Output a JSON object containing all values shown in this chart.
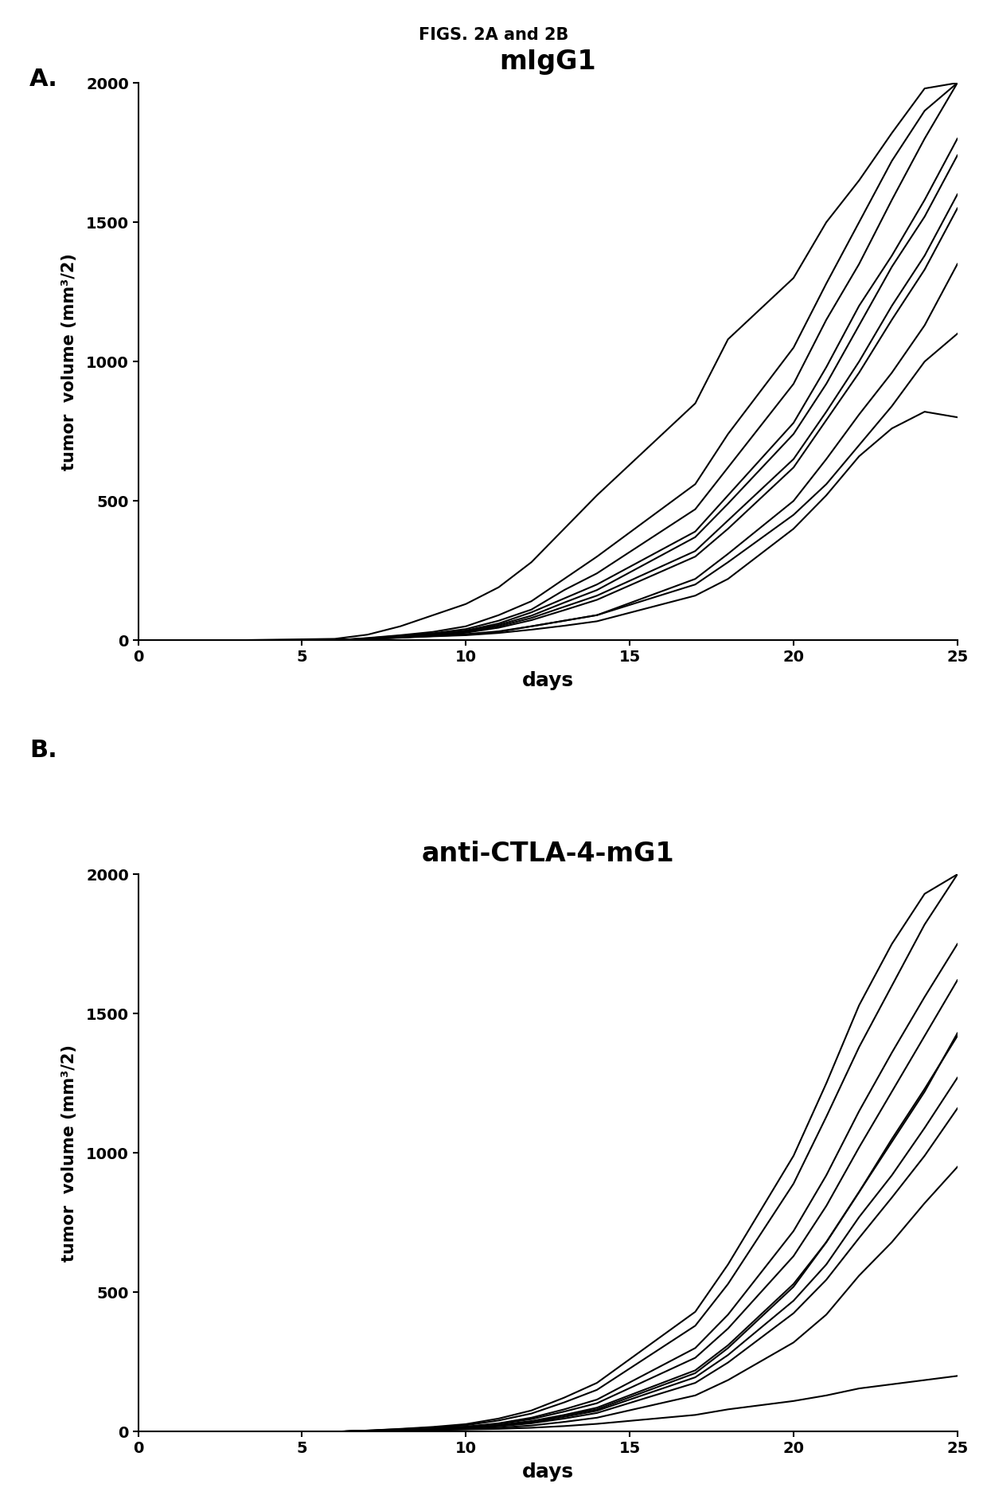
{
  "fig_title": "FIGS. 2A and 2B",
  "panel_A_title": "mIgG1",
  "panel_B_title": "anti-CTLA-4-mG1",
  "xlabel": "days",
  "ylabel": "tumor  volume (mm³/2)",
  "xlim": [
    0,
    25
  ],
  "ylim": [
    0,
    2000
  ],
  "xticks": [
    0,
    5,
    10,
    15,
    20,
    25
  ],
  "yticks": [
    0,
    500,
    1000,
    1500,
    2000
  ],
  "line_color": "#000000",
  "panel_A_x": [
    0,
    3,
    6,
    7,
    8,
    9,
    10,
    11,
    12,
    13,
    14,
    17,
    18,
    20,
    21,
    22,
    23,
    24,
    25
  ],
  "panel_A_data": [
    [
      0,
      0,
      0,
      5,
      10,
      15,
      20,
      30,
      50,
      70,
      90,
      200,
      280,
      450,
      560,
      700,
      840,
      1000,
      1100
    ],
    [
      0,
      0,
      0,
      5,
      12,
      20,
      30,
      50,
      80,
      120,
      160,
      320,
      430,
      650,
      820,
      1000,
      1200,
      1380,
      1600
    ],
    [
      0,
      0,
      0,
      6,
      14,
      22,
      35,
      60,
      100,
      150,
      200,
      390,
      520,
      780,
      980,
      1200,
      1380,
      1580,
      1800
    ],
    [
      0,
      0,
      0,
      7,
      16,
      25,
      40,
      70,
      110,
      180,
      240,
      470,
      620,
      920,
      1150,
      1350,
      1580,
      1800,
      2000
    ],
    [
      0,
      0,
      0,
      8,
      18,
      30,
      50,
      90,
      140,
      220,
      300,
      560,
      740,
      1050,
      1280,
      1500,
      1720,
      1900,
      2000
    ],
    [
      0,
      0,
      5,
      20,
      50,
      90,
      130,
      190,
      280,
      400,
      520,
      850,
      1080,
      1300,
      1500,
      1650,
      1820,
      1980,
      2000
    ],
    [
      0,
      0,
      0,
      5,
      10,
      16,
      22,
      32,
      50,
      70,
      90,
      220,
      310,
      500,
      650,
      810,
      960,
      1130,
      1350
    ],
    [
      0,
      0,
      0,
      6,
      13,
      21,
      32,
      55,
      88,
      135,
      180,
      370,
      490,
      740,
      920,
      1130,
      1340,
      1520,
      1740
    ],
    [
      0,
      0,
      0,
      5,
      11,
      18,
      27,
      45,
      72,
      108,
      145,
      300,
      400,
      620,
      790,
      960,
      1150,
      1330,
      1550
    ],
    [
      0,
      0,
      0,
      4,
      9,
      14,
      18,
      26,
      38,
      52,
      68,
      160,
      220,
      400,
      520,
      660,
      760,
      820,
      800
    ]
  ],
  "panel_B_x": [
    0,
    3,
    6,
    7,
    8,
    9,
    10,
    11,
    12,
    13,
    14,
    17,
    18,
    20,
    21,
    22,
    23,
    24,
    25
  ],
  "panel_B_data": [
    [
      0,
      0,
      0,
      2,
      4,
      6,
      8,
      10,
      14,
      20,
      28,
      60,
      80,
      110,
      130,
      155,
      170,
      185,
      200
    ],
    [
      0,
      0,
      0,
      2,
      4,
      6,
      9,
      14,
      22,
      35,
      50,
      130,
      185,
      320,
      420,
      560,
      680,
      820,
      950
    ],
    [
      0,
      0,
      0,
      3,
      6,
      9,
      14,
      22,
      36,
      58,
      80,
      210,
      300,
      520,
      680,
      860,
      1050,
      1230,
      1420
    ],
    [
      0,
      0,
      0,
      3,
      7,
      12,
      18,
      30,
      50,
      80,
      115,
      300,
      420,
      720,
      920,
      1150,
      1360,
      1560,
      1750
    ],
    [
      0,
      0,
      0,
      4,
      9,
      15,
      23,
      40,
      65,
      105,
      150,
      380,
      530,
      890,
      1130,
      1380,
      1600,
      1820,
      2000
    ],
    [
      0,
      0,
      0,
      4,
      10,
      17,
      27,
      47,
      76,
      122,
      175,
      430,
      600,
      990,
      1250,
      1530,
      1750,
      1930,
      2000
    ],
    [
      0,
      0,
      0,
      3,
      7,
      11,
      17,
      28,
      45,
      72,
      102,
      265,
      370,
      630,
      810,
      1020,
      1220,
      1420,
      1620
    ],
    [
      0,
      0,
      0,
      3,
      6,
      10,
      15,
      24,
      38,
      60,
      86,
      220,
      310,
      530,
      680,
      860,
      1040,
      1220,
      1430
    ],
    [
      0,
      0,
      0,
      3,
      6,
      9,
      13,
      21,
      33,
      53,
      75,
      195,
      275,
      470,
      600,
      770,
      920,
      1090,
      1270
    ],
    [
      0,
      0,
      0,
      2,
      5,
      8,
      12,
      19,
      30,
      47,
      67,
      175,
      248,
      425,
      545,
      695,
      840,
      990,
      1160
    ]
  ]
}
